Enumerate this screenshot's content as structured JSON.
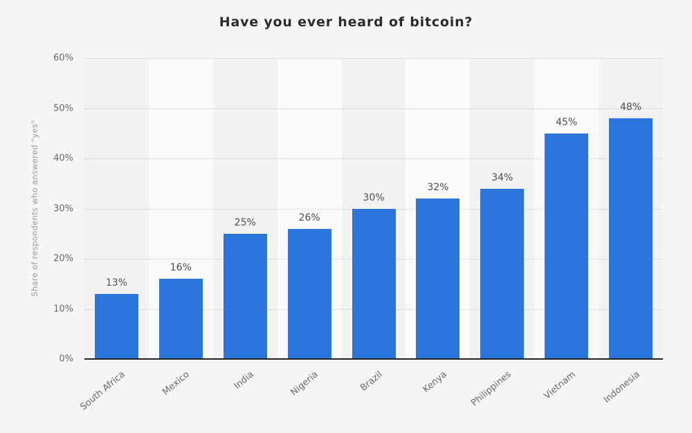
{
  "title": "Have you ever heard of bitcoin?",
  "chart_data": {
    "type": "bar",
    "title": "Have you ever heard of bitcoin?",
    "categories": [
      "South Africa",
      "Mexico",
      "India",
      "Nigeria",
      "Brazil",
      "Kenya",
      "Philippines",
      "Vietnam",
      "Indonesia"
    ],
    "values": [
      13,
      16,
      25,
      26,
      30,
      32,
      34,
      45,
      48
    ],
    "value_labels": [
      "13%",
      "16%",
      "25%",
      "26%",
      "30%",
      "32%",
      "34%",
      "45%",
      "48%"
    ],
    "xlabel": "",
    "ylabel": "Share of respondents who answered \"yes\"",
    "ylim": [
      0,
      60
    ],
    "ytick_step": 10,
    "ytick_labels": [
      "0%",
      "10%",
      "20%",
      "30%",
      "40%",
      "50%",
      "60%"
    ],
    "grid": "horizontal-dotted",
    "legend": "none",
    "colors": {
      "bar": "#2b76dc",
      "background": "#f5f5f5",
      "band_dark": "#f2f2f2",
      "band_light": "#fafafa",
      "gridline": "#cbcbcb",
      "axis_line": "#222222",
      "title_text": "#2b2b2b",
      "value_label_text": "#4e4e4e",
      "tick_text": "#686868",
      "axis_title_text": "#9c9c9c"
    }
  }
}
